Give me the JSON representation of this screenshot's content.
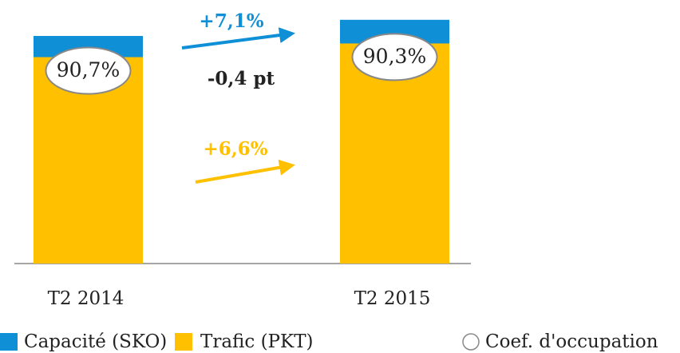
{
  "chart_data": {
    "type": "bar",
    "categories": [
      "T2 2014",
      "T2 2015"
    ],
    "series": [
      {
        "name": "Capacité (SKO)",
        "color": "#0f8fd6",
        "values": [
          100,
          107.1
        ]
      },
      {
        "name": "Trafic (PKT)",
        "color": "#ffc000",
        "values": [
          90.7,
          96.7
        ]
      }
    ],
    "load_factor": {
      "name": "Coef. d'occupation",
      "values": [
        90.7,
        90.3
      ],
      "value_labels": [
        "90,7%",
        "90,3%"
      ]
    },
    "annotations": [
      {
        "text": "+7,1%",
        "color": "#0f8fd6"
      },
      {
        "text": "-0,4 pt",
        "color": "#222222"
      },
      {
        "text": "+6,6%",
        "color": "#ffc000"
      }
    ],
    "ylim": [
      0,
      115.8
    ]
  }
}
